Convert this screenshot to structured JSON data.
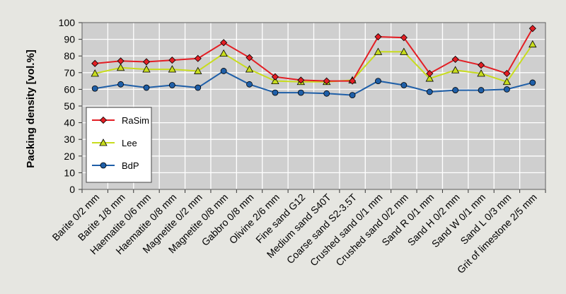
{
  "chart_data": {
    "type": "line",
    "title": "",
    "xlabel": "",
    "ylabel": "Packing density [vol.%]",
    "ylim": [
      0,
      100
    ],
    "yticks": [
      0,
      10,
      20,
      30,
      40,
      50,
      60,
      70,
      80,
      90,
      100
    ],
    "grid": true,
    "legend_position": "left",
    "categories": [
      "Barite 0/2 mm",
      "Barite 1/8 mm",
      "Haematite 0/6 mm",
      "Haematite 0/8 mm",
      "Magnetite 0/2 mm",
      "Magnetite 0/8 mm",
      "Gabbro 0/8 mm",
      "Olivine 2/6 mm",
      "Fine sand G12",
      "Medium sand S40T",
      "Coarse sand S2-3.5T",
      "Crushed sand 0/1 mm",
      "Crushed sand 0/2 mm",
      "Sand R 0/1 mm",
      "Sand H 0/2 mm",
      "Sand W 0/1 mm",
      "Sand L 0/3 mm",
      "Grit of limestone 2/5 mm"
    ],
    "series": [
      {
        "name": "RaSim",
        "color": "#e31e24",
        "marker": "diamond",
        "values": [
          75.5,
          77,
          76.5,
          77.5,
          78.5,
          88,
          79,
          67.5,
          65.5,
          65,
          65,
          91.5,
          91,
          69.5,
          78,
          74.5,
          69.5,
          96.5
        ]
      },
      {
        "name": "Lee",
        "color": "#c8dc1e",
        "marker": "triangle",
        "values": [
          69.5,
          73,
          72,
          72,
          71,
          81.5,
          72,
          65,
          64.5,
          64.5,
          65.5,
          82.5,
          82.5,
          66.5,
          71.5,
          69.5,
          64.5,
          87
        ]
      },
      {
        "name": "BdP",
        "color": "#1f5fa8",
        "marker": "circle",
        "values": [
          60.5,
          63,
          61,
          62.5,
          61,
          71,
          63,
          58,
          58,
          57.5,
          56.5,
          65,
          62.5,
          58.5,
          59.5,
          59.5,
          60,
          64
        ]
      }
    ]
  }
}
